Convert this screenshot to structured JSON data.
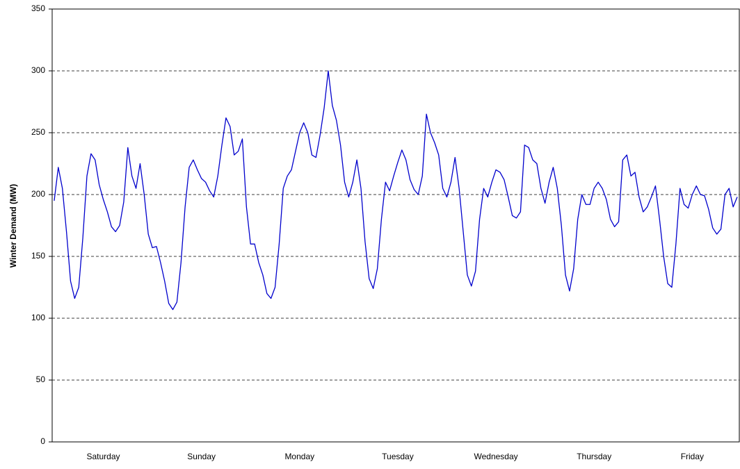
{
  "chart_data": {
    "type": "line",
    "y_label": "Winter Demand (MW)",
    "categories": [
      null,
      null,
      null,
      null,
      null,
      null,
      null,
      null,
      null,
      null,
      null,
      null,
      "Saturday",
      null,
      null,
      null,
      null,
      null,
      null,
      null,
      null,
      null,
      null,
      null,
      null,
      null,
      null,
      null,
      null,
      null,
      null,
      null,
      null,
      null,
      null,
      null,
      "Sunday",
      null,
      null,
      null,
      null,
      null,
      null,
      null,
      null,
      null,
      null,
      null,
      null,
      null,
      null,
      null,
      null,
      null,
      null,
      null,
      null,
      null,
      null,
      null,
      "Monday",
      null,
      null,
      null,
      null,
      null,
      null,
      null,
      null,
      null,
      null,
      null,
      null,
      null,
      null,
      null,
      null,
      null,
      null,
      null,
      null,
      null,
      null,
      null,
      "Tuesday",
      null,
      null,
      null,
      null,
      null,
      null,
      null,
      null,
      null,
      null,
      null,
      null,
      null,
      null,
      null,
      null,
      null,
      null,
      null,
      null,
      null,
      null,
      null,
      "Wednesday",
      null,
      null,
      null,
      null,
      null,
      null,
      null,
      null,
      null,
      null,
      null,
      null,
      null,
      null,
      null,
      null,
      null,
      null,
      null,
      null,
      null,
      null,
      null,
      "Thursday",
      null,
      null,
      null,
      null,
      null,
      null,
      null,
      null,
      null,
      null,
      null,
      null,
      null,
      null,
      null,
      null,
      null,
      null,
      null,
      null,
      null,
      null,
      null,
      "Friday",
      null,
      null,
      null,
      null,
      null,
      null,
      null,
      null,
      null,
      null,
      null
    ],
    "series": [
      {
        "color": "#0000cc",
        "values": [
          195,
          222,
          205,
          170,
          130,
          116,
          125,
          165,
          215,
          233,
          228,
          208,
          196,
          186,
          174,
          170,
          175,
          194,
          238,
          215,
          205,
          225,
          200,
          168,
          157,
          158,
          145,
          130,
          112,
          107,
          113,
          145,
          190,
          222,
          228,
          220,
          213,
          210,
          203,
          198,
          215,
          240,
          262,
          255,
          232,
          235,
          245,
          190,
          160,
          160,
          145,
          135,
          120,
          116,
          125,
          160,
          205,
          215,
          220,
          235,
          250,
          258,
          250,
          232,
          230,
          248,
          270,
          300,
          272,
          260,
          240,
          210,
          198,
          210,
          228,
          205,
          162,
          132,
          124,
          140,
          180,
          210,
          203,
          215,
          226,
          236,
          228,
          212,
          204,
          200,
          215,
          265,
          250,
          242,
          232,
          205,
          198,
          210,
          230,
          205,
          170,
          135,
          126,
          138,
          180,
          205,
          198,
          210,
          220,
          218,
          212,
          198,
          183,
          181,
          186,
          240,
          238,
          228,
          225,
          205,
          193,
          210,
          222,
          205,
          175,
          135,
          122,
          140,
          180,
          200,
          192,
          192,
          205,
          210,
          205,
          196,
          180,
          174,
          178,
          228,
          232,
          215,
          218,
          198,
          186,
          190,
          198,
          207,
          180,
          150,
          128,
          125,
          160,
          205,
          192,
          189,
          200,
          207,
          200,
          199,
          188,
          173,
          168,
          172,
          200,
          205,
          190,
          198
        ]
      }
    ],
    "ylim": [
      0,
      350
    ],
    "yticks": [
      0,
      50,
      100,
      150,
      200,
      250,
      300,
      350
    ],
    "grid": true
  }
}
